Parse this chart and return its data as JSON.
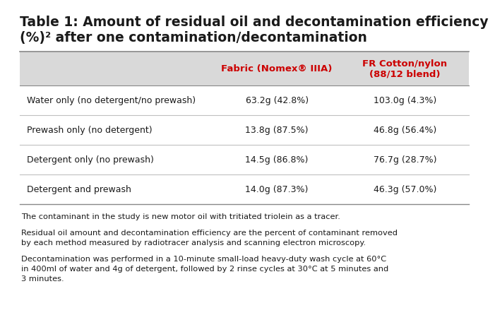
{
  "title_line1": "Table 1: Amount of residual oil and decontamination efficiency",
  "title_line2": "(%)² after one contamination/decontamination",
  "col_headers": [
    "Fabric (Nomex® IIIA)",
    "FR Cotton/nylon\n(88/12 blend)"
  ],
  "row_labels": [
    "Water only (no detergent/no prewash)",
    "Prewash only (no detergent)",
    "Detergent only (no prewash)",
    "Detergent and prewash"
  ],
  "col1_values": [
    "63.2g (42.8%)",
    "13.8g (87.5%)",
    "14.5g (86.8%)",
    "14.0g (87.3%)"
  ],
  "col2_values": [
    "103.0g (4.3%)",
    "46.8g (56.4%)",
    "76.7g (28.7%)",
    "46.3g (57.0%)"
  ],
  "footnotes": [
    "The contaminant in the study is new motor oil with tritiated triolein as a tracer.",
    "Residual oil amount and decontamination efficiency are the percent of contaminant removed\nby each method measured by radiotracer analysis and scanning electron microscopy.",
    "Decontamination was performed in a 10-minute small-load heavy-duty wash cycle at 60°C\nin 400ml of water and 4g of detergent, followed by 2 rinse cycles at 30°C at 5 minutes and\n3 minutes."
  ],
  "white_color": "#ffffff",
  "light_gray": "#e8e8e8",
  "header_bg": "#d9d9d9",
  "red_color": "#cc0000",
  "black_color": "#1a1a1a",
  "sep_color": "#c0c0c0",
  "bold_sep_color": "#888888",
  "title_fontsize": 13.5,
  "header_fontsize": 9.5,
  "cell_fontsize": 9.0,
  "footnote_fontsize": 8.2
}
